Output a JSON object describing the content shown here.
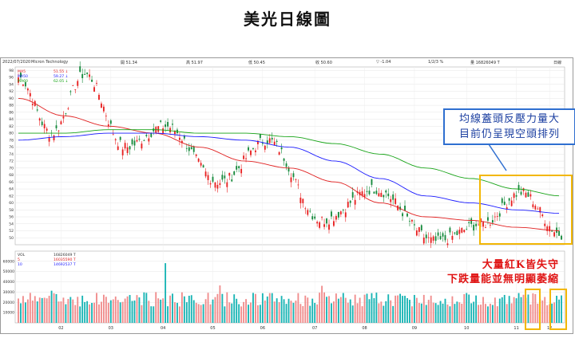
{
  "page": {
    "title": "美光日線圖"
  },
  "infobar": {
    "date": "2022/07/2020",
    "name": "Micron Technology",
    "open": "開 51.34",
    "high": "高 51.97",
    "low": "低 50.45",
    "close": "收 50.60",
    "change": "▽ -1.04",
    "pct": "1/2/3 %",
    "volume": "量 16826049 T",
    "period": "日線"
  },
  "price_legend": [
    {
      "label": "MA5",
      "value": "51.55 ↓",
      "color": "#e02020"
    },
    {
      "label": "MA50",
      "value": "59.27 ↓",
      "color": "#1a1aff"
    },
    {
      "label": "MA60",
      "value": "62.05 ↓",
      "color": "#16a316"
    }
  ],
  "volume_legend": [
    {
      "label": "VOL",
      "value": "16826049 T"
    },
    {
      "label": "5",
      "value": "16035590 T"
    },
    {
      "label": "10",
      "value": "14692537 T"
    }
  ],
  "annotations": {
    "callout": [
      "均線蓋頭反壓力量大",
      "目前仍呈現空頭排列"
    ],
    "volume_note": [
      "大量紅K皆失守",
      "下跌量能並無明顯萎縮"
    ]
  },
  "colors": {
    "up": "#e82020",
    "down": "#168a3c",
    "vol_up": "#f08c8c",
    "vol_down": "#18b4b4",
    "callout_border": "#2f6fd0",
    "highlight": "#f2b705"
  },
  "chart_data": [
    {
      "type": "candlestick",
      "title": "",
      "x_ticks": [
        "02",
        "03",
        "04",
        "05",
        "06",
        "07",
        "08",
        "09",
        "10",
        "11",
        "12"
      ],
      "y_ticks": [
        50,
        52,
        54,
        56,
        58,
        60,
        62,
        64,
        66,
        68,
        70,
        72,
        74,
        76,
        78,
        80,
        82,
        84,
        86,
        88,
        90,
        92,
        94,
        96,
        98
      ],
      "ylim": [
        48,
        99
      ],
      "key_points": [
        {
          "x": "01",
          "price": 96
        },
        {
          "x": "02",
          "price": 80
        },
        {
          "x": "02",
          "price": 97
        },
        {
          "x": "03",
          "price": 76
        },
        {
          "x": "04",
          "price": 82
        },
        {
          "x": "05",
          "price": 66
        },
        {
          "x": "06",
          "price": 78
        },
        {
          "x": "07",
          "price": 55
        },
        {
          "x": "08",
          "price": 64
        },
        {
          "x": "09",
          "price": 49
        },
        {
          "x": "10",
          "price": 54
        },
        {
          "x": "11",
          "price": 63
        },
        {
          "x": "12",
          "price": 51
        }
      ],
      "series": [
        {
          "name": "MA5",
          "approx": [
            90,
            85,
            82,
            80,
            76,
            72,
            70,
            66,
            60,
            56,
            55,
            53,
            52
          ]
        },
        {
          "name": "MA50",
          "approx": [
            78,
            79,
            80,
            80,
            79,
            78,
            76,
            72,
            67,
            62,
            60,
            58,
            57
          ]
        },
        {
          "name": "MA60",
          "approx": [
            80,
            80,
            81,
            81,
            80,
            80,
            79,
            77,
            74,
            70,
            67,
            64,
            62
          ]
        }
      ]
    },
    {
      "type": "bar",
      "title": "",
      "y_ticks": [
        10000,
        20000,
        30000,
        40000,
        50000,
        60000
      ],
      "ylim": [
        0,
        70000
      ],
      "peak": 68000
    }
  ]
}
